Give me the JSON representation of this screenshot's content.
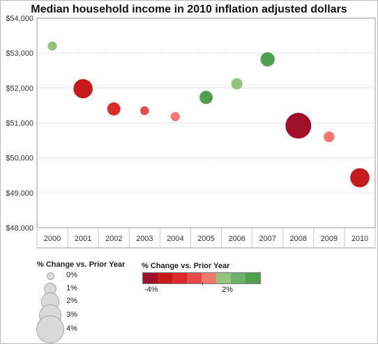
{
  "chart_data": {
    "type": "scatter",
    "title": "Median household income in 2010 inflation adjusted dollars",
    "xlabel": "",
    "ylabel": "",
    "ylim": [
      48000,
      54000
    ],
    "yticks": [
      "$48,000",
      "$49,000",
      "$50,000",
      "$51,000",
      "$52,000",
      "$53,000",
      "$54,000"
    ],
    "ytick_values": [
      48000,
      49000,
      50000,
      51000,
      52000,
      53000,
      54000
    ],
    "categories": [
      "2000",
      "2001",
      "2002",
      "2003",
      "2004",
      "2005",
      "2006",
      "2007",
      "2008",
      "2009",
      "2010"
    ],
    "values": [
      53200,
      51980,
      51400,
      51350,
      51180,
      51730,
      52120,
      52820,
      50920,
      50600,
      49430
    ],
    "pct_change": [
      0.3,
      -2.3,
      -1.1,
      -0.2,
      -0.3,
      1.1,
      0.7,
      1.3,
      -3.6,
      -0.6,
      -2.3
    ],
    "colors": [
      "#93c47d",
      "#c71a1a",
      "#d92b2b",
      "#e74a4a",
      "#f4776e",
      "#4e9e4e",
      "#93c47d",
      "#4e9e4e",
      "#a0102a",
      "#f4776e",
      "#c71a1a"
    ],
    "grid": true,
    "size_legend": {
      "title": "% Change vs. Prior Year",
      "items": [
        {
          "label": "0%",
          "value": 0
        },
        {
          "label": "1%",
          "value": 1
        },
        {
          "label": "2%",
          "value": 2
        },
        {
          "label": "3%",
          "value": 3
        },
        {
          "label": "4%",
          "value": 4
        }
      ]
    },
    "color_legend": {
      "title": "% Change vs. Prior Year",
      "min_label": "-4%",
      "max_label": "2%",
      "ramp": [
        "#a0102a",
        "#c71a1a",
        "#d92b2b",
        "#e74a4a",
        "#f4776e",
        "#93c47d",
        "#6bb06b",
        "#4e9e4e"
      ]
    }
  }
}
